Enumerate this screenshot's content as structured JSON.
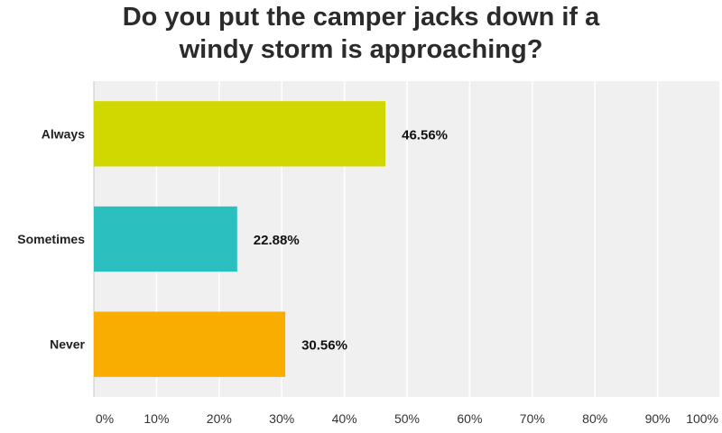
{
  "chart_data": {
    "type": "bar",
    "orientation": "horizontal",
    "title_lines": [
      "Do you put the camper jacks down if a",
      "windy storm is approaching?"
    ],
    "categories": [
      "Always",
      "Sometimes",
      "Never"
    ],
    "values": [
      46.56,
      22.88,
      30.56
    ],
    "value_labels": [
      "46.56%",
      "22.88%",
      "30.56%"
    ],
    "colors": [
      "#d0d800",
      "#2bbfbf",
      "#f8ad00"
    ],
    "xlim": [
      0,
      100
    ],
    "x_ticks": [
      0,
      10,
      20,
      30,
      40,
      50,
      60,
      70,
      80,
      90,
      100
    ],
    "x_tick_labels": [
      "0%",
      "10%",
      "20%",
      "30%",
      "40%",
      "50%",
      "60%",
      "70%",
      "80%",
      "90%",
      "100%"
    ],
    "grid": true,
    "legend": false,
    "plot_background": "#f0f0f0",
    "grid_color": "#ffffff",
    "xlabel": "",
    "ylabel": ""
  }
}
